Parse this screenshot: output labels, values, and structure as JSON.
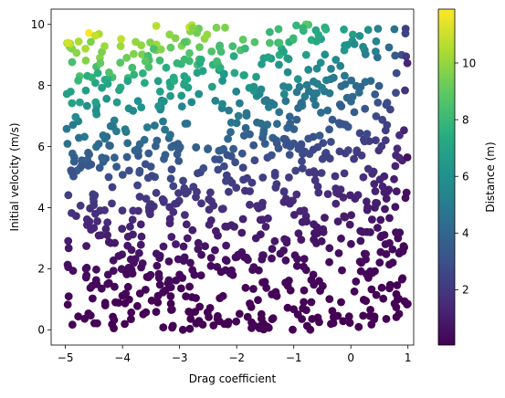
{
  "chart_data": {
    "type": "scatter",
    "xlabel": "Drag coefficient",
    "ylabel": "Initial velocity (m/s)",
    "xlim": [
      -5.25,
      1.1
    ],
    "ylim": [
      -0.5,
      10.5
    ],
    "x_ticks": [
      -5,
      -4,
      -3,
      -2,
      -1,
      0,
      1
    ],
    "x_tick_labels": [
      "−5",
      "−4",
      "−3",
      "−2",
      "−1",
      "0",
      "1"
    ],
    "y_ticks": [
      0,
      2,
      4,
      6,
      8,
      10
    ],
    "y_tick_labels": [
      "0",
      "2",
      "4",
      "6",
      "8",
      "10"
    ],
    "grid": false,
    "point_count": 1000,
    "colorbar": {
      "label": "Distance (m)",
      "colormap": "viridis",
      "range": [
        0.05,
        11.9
      ],
      "ticks": [
        2,
        4,
        6,
        8,
        10
      ],
      "tick_labels": [
        "2",
        "4",
        "6",
        "8",
        "10"
      ]
    },
    "colormap_stops": [
      "#440154",
      "#472c7a",
      "#3b518b",
      "#2c718e",
      "#21908d",
      "#27ad81",
      "#5cc863",
      "#aadc32",
      "#fde725"
    ],
    "x_domain": [
      -5,
      1
    ],
    "y_domain": [
      0,
      10
    ]
  }
}
